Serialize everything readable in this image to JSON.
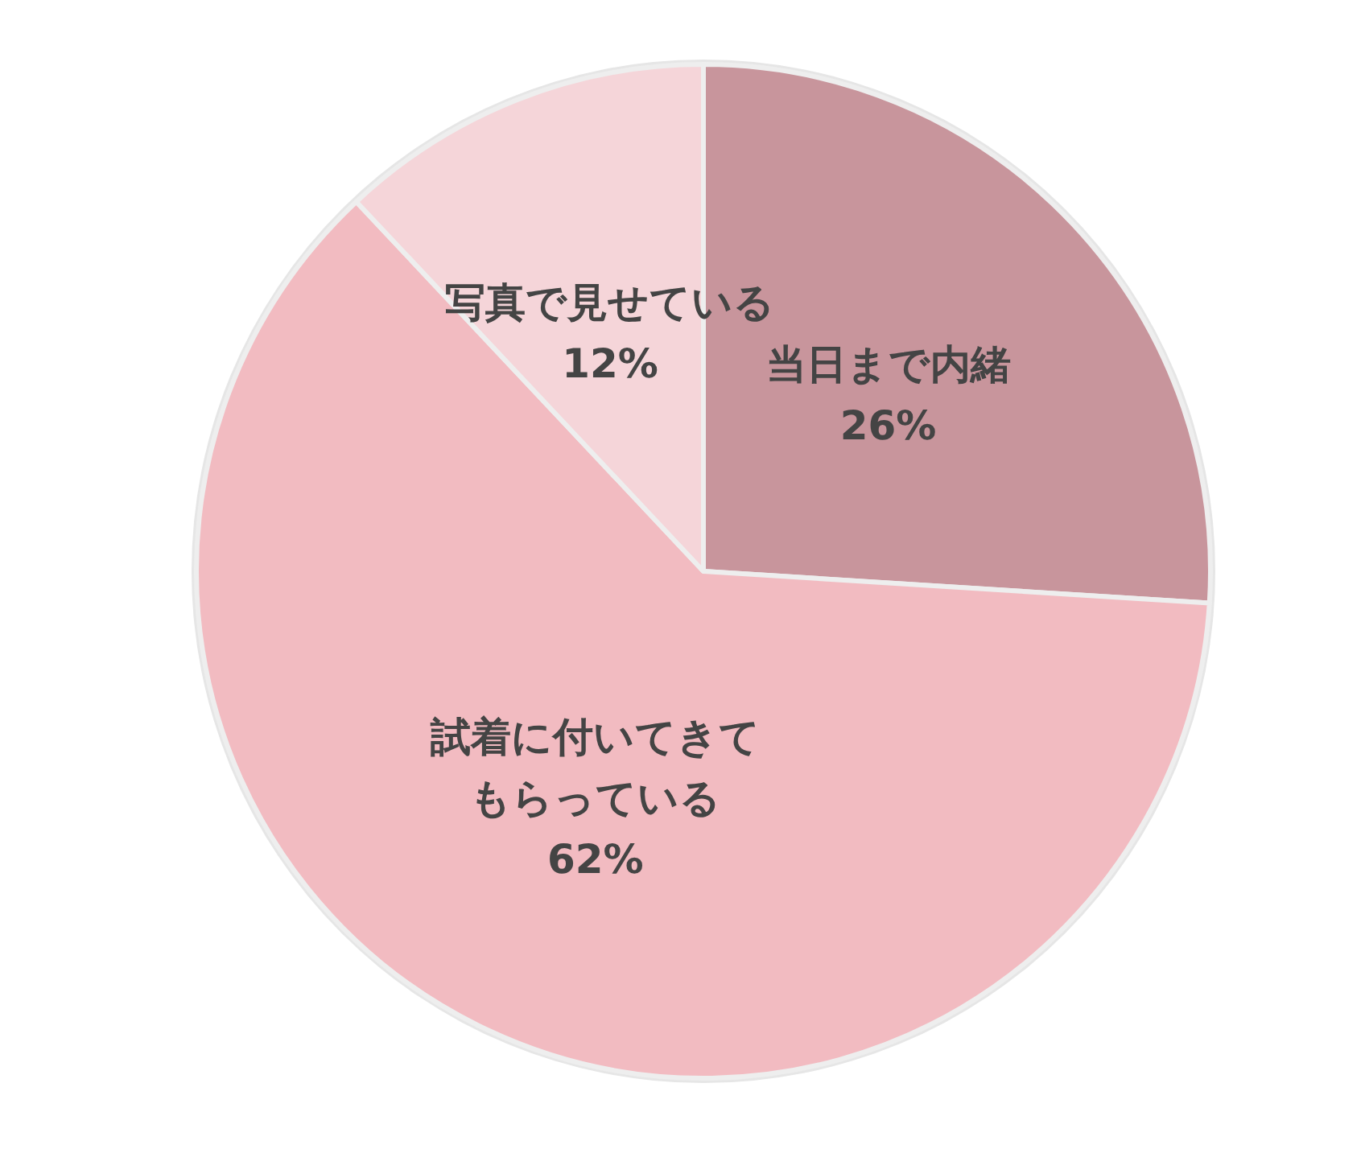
{
  "chart_data": {
    "type": "pie",
    "categories": [
      "当日まで内緒",
      "試着に付いてきてもらっている",
      "写真で見せている"
    ],
    "values": [
      26,
      62,
      12
    ],
    "colors": [
      "#c8959c",
      "#f2bbc1",
      "#f5d5d9"
    ],
    "value_labels": [
      "26%",
      "62%",
      "12%"
    ]
  }
}
